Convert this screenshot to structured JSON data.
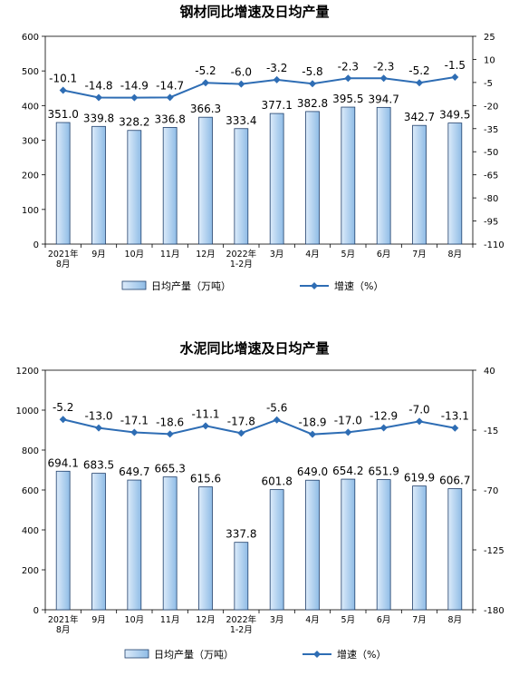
{
  "chart_data": [
    {
      "type": "bar",
      "title": "钢材同比增速及日均产量",
      "categories": [
        [
          "2021年",
          "8月"
        ],
        [
          "9月"
        ],
        [
          "10月"
        ],
        [
          "11月"
        ],
        [
          "12月"
        ],
        [
          "2022年",
          "1-2月"
        ],
        [
          "3月"
        ],
        [
          "4月"
        ],
        [
          "5月"
        ],
        [
          "6月"
        ],
        [
          "7月"
        ],
        [
          "8月"
        ]
      ],
      "series": [
        {
          "name": "日均产量（万吨）",
          "type": "bar",
          "values": [
            351.0,
            339.8,
            328.2,
            336.8,
            366.3,
            333.4,
            377.1,
            382.8,
            395.5,
            394.7,
            342.7,
            349.5
          ],
          "labels": [
            "351.0",
            "339.8",
            "328.2",
            "336.8",
            "366.3",
            "333.4",
            "377.1",
            "382.8",
            "395.5",
            "394.7",
            "342.7",
            "349.5"
          ]
        },
        {
          "name": "增速（%）",
          "type": "line",
          "axis": "right",
          "values": [
            -10.1,
            -14.8,
            -14.9,
            -14.7,
            -5.2,
            -6.0,
            -3.2,
            -5.8,
            -2.3,
            -2.3,
            -5.2,
            -1.5
          ],
          "labels": [
            "-10.1",
            "-14.8",
            "-14.9",
            "-14.7",
            "-5.2",
            "-6.0",
            "-3.2",
            "-5.8",
            "-2.3",
            "-2.3",
            "-5.2",
            "-1.5"
          ]
        }
      ],
      "ylim": [
        0,
        600
      ],
      "y_ticks": [
        "0",
        "100",
        "200",
        "300",
        "400",
        "500",
        "600"
      ],
      "y2lim": [
        -110,
        25
      ],
      "y2_ticks": [
        "25",
        "10",
        "-5",
        "-20",
        "-35",
        "-50",
        "-65",
        "-80",
        "-95",
        "-110"
      ],
      "grid": false,
      "legend": "bottom",
      "colors": {
        "bar_fill_light": "#dcebfa",
        "bar_fill_dark": "#8fbce6",
        "bar_stroke": "#1f3f6b",
        "line": "#2e6db4"
      }
    },
    {
      "type": "bar",
      "title": "水泥同比增速及日均产量",
      "categories": [
        [
          "2021年",
          "8月"
        ],
        [
          "9月"
        ],
        [
          "10月"
        ],
        [
          "11月"
        ],
        [
          "12月"
        ],
        [
          "2022年",
          "1-2月"
        ],
        [
          "3月"
        ],
        [
          "4月"
        ],
        [
          "5月"
        ],
        [
          "6月"
        ],
        [
          "7月"
        ],
        [
          "8月"
        ]
      ],
      "series": [
        {
          "name": "日均产量（万吨）",
          "type": "bar",
          "values": [
            694.1,
            683.5,
            649.7,
            665.3,
            615.6,
            337.8,
            601.8,
            649.0,
            654.2,
            651.9,
            619.9,
            606.7
          ],
          "labels": [
            "694.1",
            "683.5",
            "649.7",
            "665.3",
            "615.6",
            "337.8",
            "601.8",
            "649.0",
            "654.2",
            "651.9",
            "619.9",
            "606.7"
          ]
        },
        {
          "name": "增速（%）",
          "type": "line",
          "axis": "right",
          "values": [
            -5.2,
            -13.0,
            -17.1,
            -18.6,
            -11.1,
            -17.8,
            -5.6,
            -18.9,
            -17.0,
            -12.9,
            -7.0,
            -13.1
          ],
          "labels": [
            "-5.2",
            "-13.0",
            "-17.1",
            "-18.6",
            "-11.1",
            "-17.8",
            "-5.6",
            "-18.9",
            "-17.0",
            "-12.9",
            "-7.0",
            "-13.1"
          ]
        }
      ],
      "ylim": [
        0,
        1200
      ],
      "y_ticks": [
        "0",
        "200",
        "400",
        "600",
        "800",
        "1000",
        "1200"
      ],
      "y2lim": [
        -180,
        40
      ],
      "y2_ticks": [
        "40",
        "-15",
        "-70",
        "-125",
        "-180"
      ],
      "grid": false,
      "legend": "bottom",
      "colors": {
        "bar_fill_light": "#dcebfa",
        "bar_fill_dark": "#8fbce6",
        "bar_stroke": "#1f3f6b",
        "line": "#2e6db4"
      }
    }
  ]
}
